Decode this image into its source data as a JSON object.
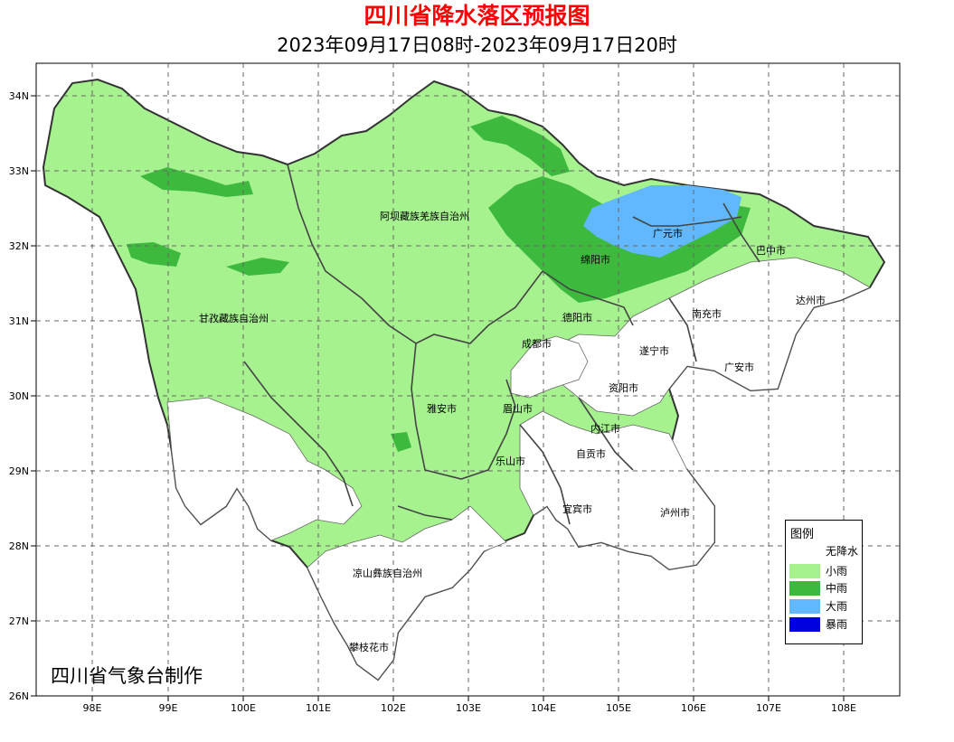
{
  "title": "四川省降水落区预报图",
  "subtitle": "2023年09月17日08时-2023年09月17日20时",
  "credit": "四川省气象台制作",
  "axes": {
    "lon_ticks": [
      "98E",
      "99E",
      "100E",
      "101E",
      "102E",
      "103E",
      "104E",
      "105E",
      "106E",
      "107E",
      "108E"
    ],
    "lat_ticks": [
      "34N",
      "33N",
      "32N",
      "31N",
      "30N",
      "29N",
      "28N",
      "27N",
      "26N"
    ]
  },
  "regions": [
    "阿坝藏族羌族自治州",
    "甘孜藏族自治州",
    "凉山彝族自治州",
    "攀枝花市",
    "广元市",
    "巴中市",
    "绵阳市",
    "达州市",
    "南充市",
    "德阳市",
    "成都市",
    "遂宁市",
    "广安市",
    "资阳市",
    "雅安市",
    "眉山市",
    "内江市",
    "自贡市",
    "乐山市",
    "宜宾市",
    "泸州市"
  ],
  "legend": {
    "title": "图例",
    "items": [
      {
        "label": "无降水",
        "color": "#ffffff"
      },
      {
        "label": "小雨",
        "color": "#a6f28f"
      },
      {
        "label": "中雨",
        "color": "#3dba3d"
      },
      {
        "label": "大雨",
        "color": "#61b8ff"
      },
      {
        "label": "暴雨",
        "color": "#0000e1"
      }
    ]
  }
}
